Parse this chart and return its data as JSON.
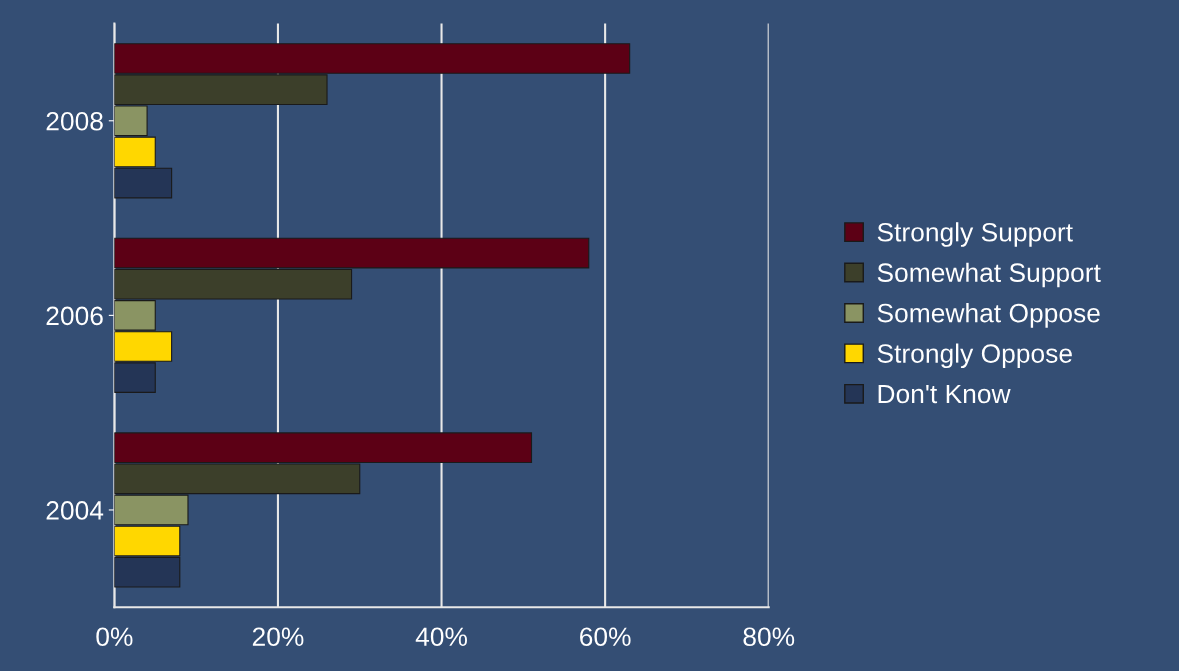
{
  "chart_data": {
    "type": "bar",
    "orientation": "horizontal",
    "categories": [
      "2008",
      "2006",
      "2004"
    ],
    "series": [
      {
        "name": "Strongly Support",
        "color": "#5c0015",
        "values": [
          63,
          58,
          51
        ]
      },
      {
        "name": "Somewhat Support",
        "color": "#3c3f2a",
        "values": [
          26,
          29,
          30
        ]
      },
      {
        "name": "Somewhat Oppose",
        "color": "#8a9463",
        "values": [
          4,
          5,
          9
        ]
      },
      {
        "name": "Strongly Oppose",
        "color": "#ffd700",
        "values": [
          5,
          7,
          8
        ]
      },
      {
        "name": "Don't Know",
        "color": "#243556",
        "values": [
          7,
          5,
          8
        ]
      }
    ],
    "xlim": [
      0,
      80
    ],
    "xticks": [
      {
        "value": 0,
        "label": "0%"
      },
      {
        "value": 20,
        "label": "20%"
      },
      {
        "value": 40,
        "label": "40%"
      },
      {
        "value": 60,
        "label": "60%"
      },
      {
        "value": 80,
        "label": "80%"
      }
    ],
    "grid": "x",
    "legend": "right"
  }
}
